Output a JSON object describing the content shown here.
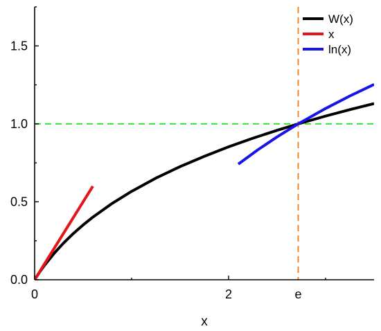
{
  "chart_data": {
    "type": "line",
    "title": "",
    "xlabel": "x",
    "ylabel": "",
    "xlim": [
      0,
      3.5
    ],
    "ylim": [
      0,
      1.75
    ],
    "grid": false,
    "legend_position": "top-right",
    "x_ticks": [
      {
        "value": 0,
        "label": "0"
      },
      {
        "value": 2,
        "label": "2"
      },
      {
        "value": 2.718,
        "label": "e"
      }
    ],
    "y_ticks": [
      {
        "value": 0,
        "label": "0.0"
      },
      {
        "value": 0.5,
        "label": "0.5"
      },
      {
        "value": 1.0,
        "label": "1.0"
      },
      {
        "value": 1.5,
        "label": "1.5"
      }
    ],
    "series": [
      {
        "name": "W(x)",
        "color": "#000000",
        "style": "solid",
        "x": [
          0,
          0.05,
          0.1,
          0.2,
          0.3,
          0.4,
          0.5,
          0.6,
          0.8,
          1.0,
          1.25,
          1.5,
          1.75,
          2.0,
          2.25,
          2.5,
          2.718,
          3.0,
          3.25,
          3.5
        ],
        "y": [
          0,
          0.0477,
          0.0913,
          0.1689,
          0.2367,
          0.2972,
          0.3517,
          0.4015,
          0.4901,
          0.5671,
          0.6518,
          0.7259,
          0.7917,
          0.8526,
          0.9079,
          0.9586,
          1.0,
          1.0499,
          1.0912,
          1.1299
        ]
      },
      {
        "name": "x",
        "color": "#e3141b",
        "style": "solid",
        "x": [
          0,
          0.6
        ],
        "y": [
          0,
          0.6
        ]
      },
      {
        "name": "ln(x)",
        "color": "#1515e6",
        "style": "solid",
        "x": [
          2.1,
          2.3,
          2.5,
          2.718,
          3.0,
          3.25,
          3.5
        ],
        "y": [
          0.7419,
          0.8329,
          0.9163,
          1.0,
          1.0986,
          1.1787,
          1.2528
        ]
      }
    ],
    "reference_lines": [
      {
        "orientation": "horizontal",
        "value": 1.0,
        "color": "#2ee82e",
        "style": "dashed"
      },
      {
        "orientation": "vertical",
        "value": 2.718,
        "color": "#ee8a2c",
        "style": "dashed"
      }
    ]
  }
}
